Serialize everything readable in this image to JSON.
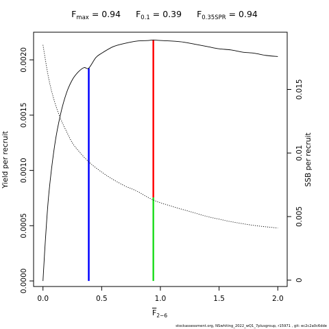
{
  "title_parts": [
    {
      "label": "F",
      "sub": "max",
      "value": "= 0.94"
    },
    {
      "label": "F",
      "sub": "0.1",
      "value": "= 0.39"
    },
    {
      "label": "F",
      "sub": "0.35SPR",
      "value": "= 0.94"
    }
  ],
  "footer": "stockassessment.org,  NSwhiting_2022_wQ1_7plusgroup,  r15971 ,  git:  ec2c2a0c6dde",
  "chart_data": {
    "type": "line",
    "xlabel": {
      "text": "F",
      "sub": "2−6"
    },
    "ylabel_left": "Yield per recruit",
    "ylabel_right": "SSB per recruit",
    "xlim": [
      -0.08,
      2.08
    ],
    "ylim_left": [
      -5e-05,
      0.00225
    ],
    "ylim_right": [
      -0.0005,
      0.0195
    ],
    "x_ticks": [
      0.0,
      0.5,
      1.0,
      1.5,
      2.0
    ],
    "x_tick_labels": [
      "0.0",
      "0.5",
      "1.0",
      "1.5",
      "2.0"
    ],
    "y_left_ticks": [
      0.0,
      0.0005,
      0.001,
      0.0015,
      0.002
    ],
    "y_left_tick_labels": [
      "0.0000",
      "0.0005",
      "0.0010",
      "0.0015",
      "0.0020"
    ],
    "y_right_ticks": [
      0.0,
      0.005,
      0.01,
      0.015
    ],
    "y_right_tick_labels": [
      "0",
      "0.005",
      "0.01",
      "0.015"
    ],
    "series": [
      {
        "style": "solid",
        "axis": "left",
        "x": [
          0.0,
          0.02,
          0.05,
          0.1,
          0.15,
          0.2,
          0.25,
          0.3,
          0.35,
          0.39,
          0.45,
          0.5,
          0.6,
          0.7,
          0.8,
          0.9,
          0.94,
          1.0,
          1.1,
          1.2,
          1.3,
          1.4,
          1.5,
          1.6,
          1.7,
          1.8,
          1.9,
          2.0
        ],
        "y": [
          0.0,
          0.00036,
          0.00079,
          0.00123,
          0.00151,
          0.0017,
          0.00182,
          0.00189,
          0.00193,
          0.001925,
          0.00202,
          0.00206,
          0.00212,
          0.00215,
          0.00217,
          0.002175,
          0.00218,
          0.002175,
          0.00217,
          0.00216,
          0.00214,
          0.00212,
          0.0021,
          0.00209,
          0.00207,
          0.00206,
          0.00204,
          0.00203
        ]
      },
      {
        "style": "dotted",
        "axis": "right",
        "x": [
          0.0,
          0.05,
          0.1,
          0.15,
          0.2,
          0.25,
          0.3,
          0.39,
          0.5,
          0.6,
          0.7,
          0.8,
          0.94,
          1.1,
          1.25,
          1.4,
          1.5,
          1.6,
          1.8,
          2.0
        ],
        "y": [
          0.0185,
          0.0158,
          0.014,
          0.0127,
          0.0117,
          0.0108,
          0.0102,
          0.0093,
          0.0085,
          0.0079,
          0.0074,
          0.007,
          0.0063,
          0.0058,
          0.0054,
          0.005,
          0.0048,
          0.0046,
          0.0043,
          0.0041
        ]
      }
    ],
    "reference_lines": [
      {
        "color": "#0000ff",
        "x": 0.39,
        "axis": "left",
        "y0": 0.0,
        "y1": 0.001925
      },
      {
        "color": "#ff0000",
        "x": 0.94,
        "axis": "left",
        "y0": 0.000755,
        "y1": 0.00218
      },
      {
        "color": "#22dd22",
        "x": 0.94,
        "axis": "left",
        "y0": 0.0,
        "y1": 0.000755
      }
    ]
  }
}
